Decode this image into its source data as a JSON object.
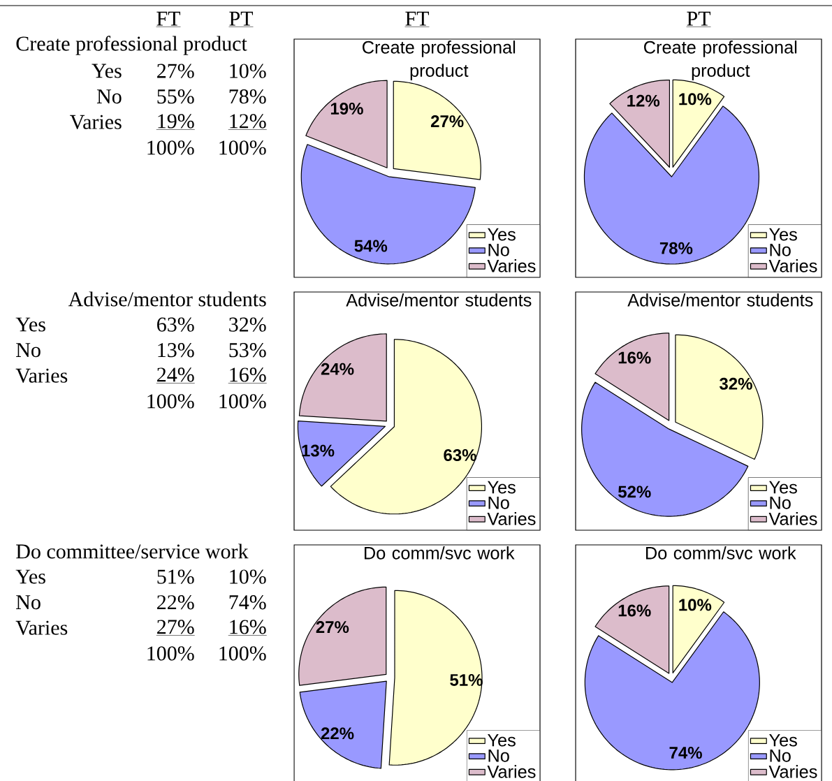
{
  "chart_data": [
    {
      "type": "other",
      "title": "Create professional product",
      "categories": [
        "Yes",
        "No",
        "Varies"
      ],
      "annotations": [
        "FT",
        "PT",
        "27%",
        "10%",
        "55%",
        "78%",
        "19%",
        "12%",
        "100%",
        "100%"
      ]
    },
    {
      "type": "pie",
      "subtitle": "FT",
      "title": "Create professional product",
      "categories": [
        "Yes",
        "No",
        "Varies"
      ],
      "values": [
        27,
        54,
        19
      ],
      "value_labels": [
        "27%",
        "54%",
        "19%"
      ],
      "colors": [
        "#ffffcc",
        "#9999ff",
        "#dcbccb"
      ],
      "legend": "bottom right"
    },
    {
      "type": "pie",
      "subtitle": "PT",
      "title": "Create professional product",
      "categories": [
        "Yes",
        "No",
        "Varies"
      ],
      "values": [
        10,
        78,
        12
      ],
      "value_labels": [
        "10%",
        "78%",
        "12%"
      ],
      "colors": [
        "#ffffcc",
        "#9999ff",
        "#dcbccb"
      ],
      "legend": "bottom right"
    },
    {
      "type": "other",
      "title": "Advise/mentor students",
      "categories": [
        "Yes",
        "No",
        "Varies"
      ],
      "annotations": [
        "63%",
        "32%",
        "13%",
        "53%",
        "24%",
        "16%",
        "100%",
        "100%"
      ]
    },
    {
      "type": "pie",
      "title": "Advise/mentor students",
      "categories": [
        "Yes",
        "No",
        "Varies"
      ],
      "values": [
        63,
        13,
        24
      ],
      "value_labels": [
        "63%",
        "13%",
        "24%"
      ],
      "colors": [
        "#ffffcc",
        "#9999ff",
        "#dcbccb"
      ],
      "legend": "bottom right"
    },
    {
      "type": "pie",
      "title": "Advise/mentor students",
      "categories": [
        "Yes",
        "No",
        "Varies"
      ],
      "values": [
        32,
        52,
        16
      ],
      "value_labels": [
        "32%",
        "52%",
        "16%"
      ],
      "colors": [
        "#ffffcc",
        "#9999ff",
        "#dcbccb"
      ],
      "legend": "bottom right"
    },
    {
      "type": "other",
      "title": "Do committee/service work",
      "categories": [
        "Yes",
        "No",
        "Varies"
      ],
      "annotations": [
        "51%",
        "10%",
        "22%",
        "74%",
        "27%",
        "16%",
        "100%",
        "100%"
      ]
    },
    {
      "type": "pie",
      "title": "Do comm/svc work",
      "categories": [
        "Yes",
        "No",
        "Varies"
      ],
      "values": [
        51,
        22,
        27
      ],
      "value_labels": [
        "51%",
        "22%",
        "27%"
      ],
      "colors": [
        "#ffffcc",
        "#9999ff",
        "#dcbccb"
      ],
      "legend": "bottom right"
    },
    {
      "type": "pie",
      "title": "Do comm/svc work",
      "categories": [
        "Yes",
        "No",
        "Varies"
      ],
      "values": [
        10,
        74,
        16
      ],
      "value_labels": [
        "10%",
        "74%",
        "16%"
      ],
      "colors": [
        "#ffffcc",
        "#9999ff",
        "#dcbccb"
      ],
      "legend": "bottom right"
    }
  ]
}
